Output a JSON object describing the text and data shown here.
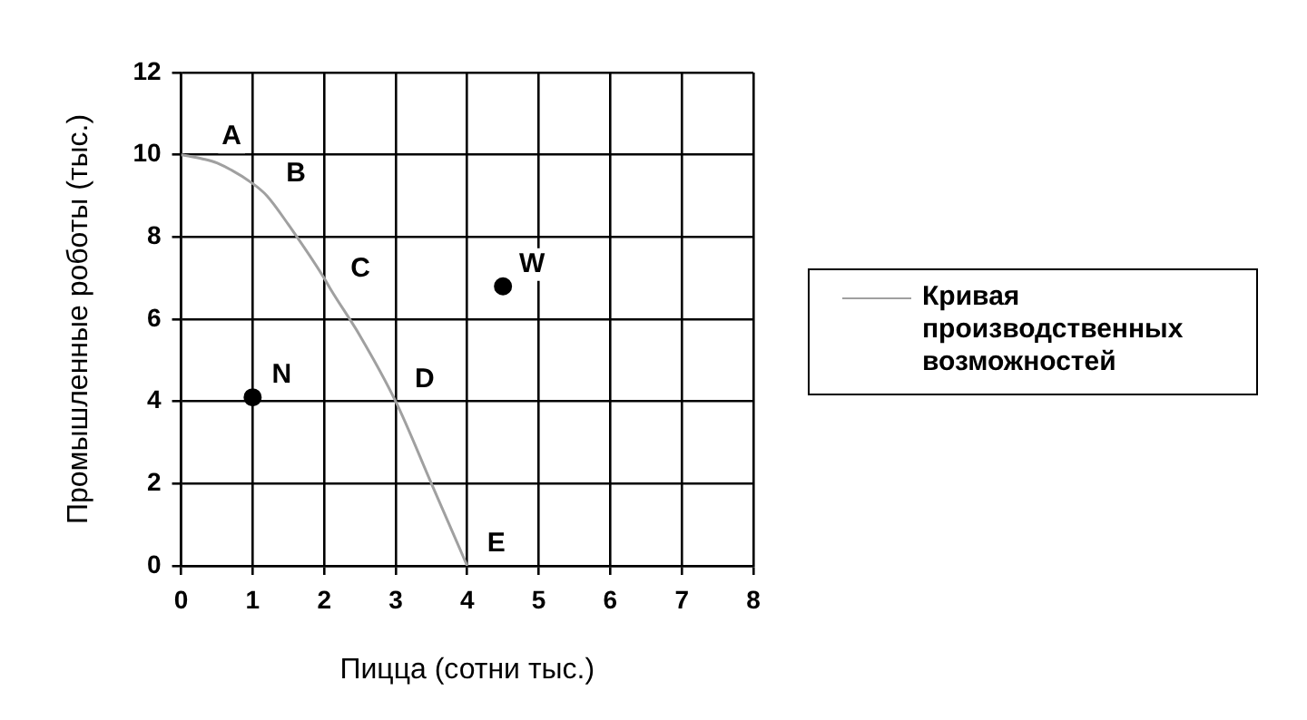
{
  "chart_data": {
    "type": "line",
    "xlabel": "Пицца (сотни тыс.)",
    "ylabel": "Промышленные роботы (тыс.)",
    "xlim": [
      0,
      8
    ],
    "xticks": [
      0,
      1,
      2,
      3,
      4,
      5,
      6,
      7,
      8
    ],
    "ylim": [
      0,
      12
    ],
    "yticks": [
      0,
      2,
      4,
      6,
      8,
      10,
      12
    ],
    "grid": true,
    "legend": "right",
    "series": [
      {
        "name": "Кривая производственных возможностей",
        "color": "#a0a0a0",
        "x": [
          0,
          0.3,
          0.5,
          1,
          1.2,
          1.5,
          2,
          2.1,
          2.5,
          3,
          3.5,
          4
        ],
        "values": [
          10,
          9.9,
          9.8,
          9.3,
          9,
          8.3,
          7,
          6.7,
          5.6,
          4,
          2,
          0
        ],
        "marker": "none"
      },
      {
        "type": "scatter",
        "color": "#000000",
        "x": [
          1
        ],
        "values": [
          4.1
        ],
        "marker": "circle"
      },
      {
        "type": "scatter",
        "color": "#000000",
        "x": [
          4.5
        ],
        "values": [
          6.8
        ],
        "marker": "circle"
      }
    ],
    "annotations": [
      {
        "text": "A",
        "x": 0.3,
        "y": 9.9
      },
      {
        "text": "B",
        "x": 1.2,
        "y": 9
      },
      {
        "text": "C",
        "x": 2.1,
        "y": 6.7
      },
      {
        "text": "D",
        "x": 3,
        "y": 4
      },
      {
        "text": "E",
        "x": 4,
        "y": 0
      },
      {
        "text": "N",
        "x": 1,
        "y": 4.1
      },
      {
        "text": "W",
        "x": 4.5,
        "y": 6.8
      }
    ]
  }
}
